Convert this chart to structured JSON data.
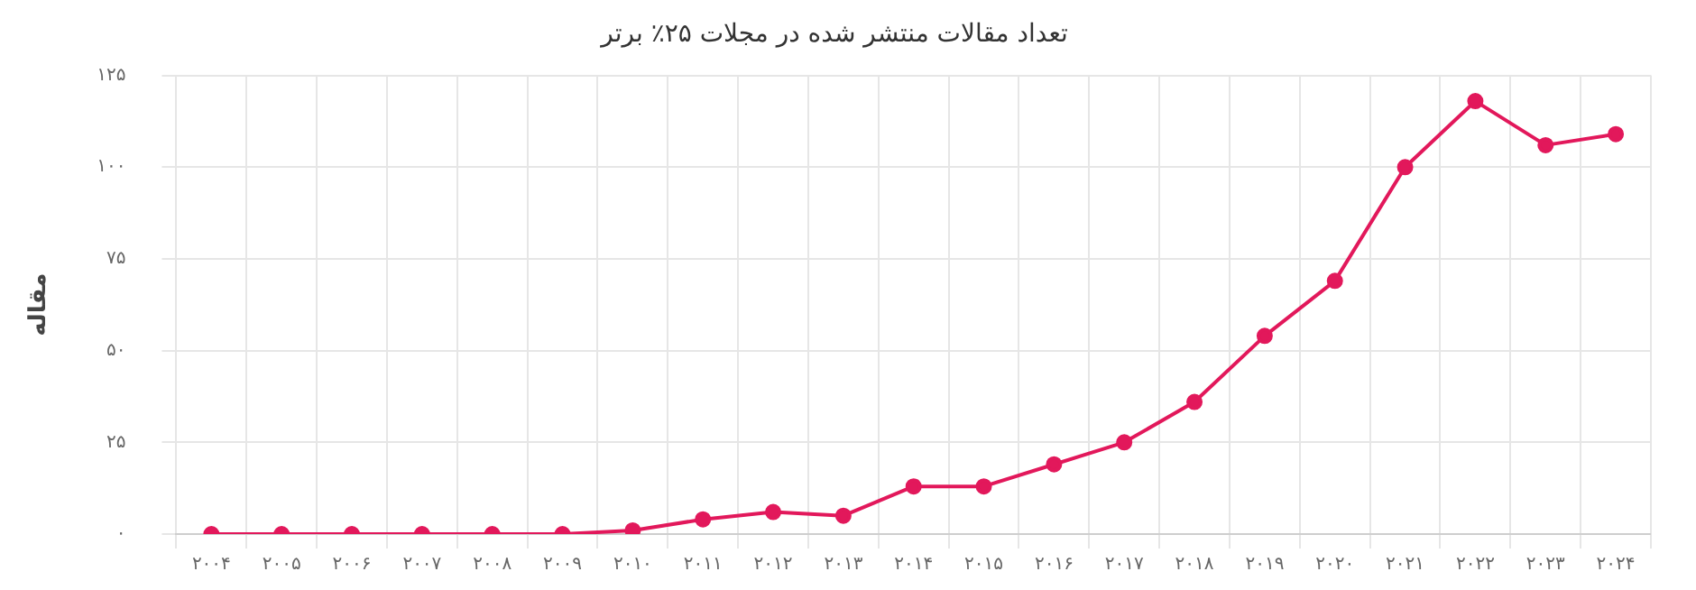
{
  "chart_data": {
    "type": "line",
    "title": "تعداد مقالات منتشر شده در مجلات ۲۵٪ برتر",
    "ylabel": "مقاله",
    "categories": [
      "۲۰۰۴",
      "۲۰۰۵",
      "۲۰۰۶",
      "۲۰۰۷",
      "۲۰۰۸",
      "۲۰۰۹",
      "۲۰۱۰",
      "۲۰۱۱",
      "۲۰۱۲",
      "۲۰۱۳",
      "۲۰۱۴",
      "۲۰۱۵",
      "۲۰۱۶",
      "۲۰۱۷",
      "۲۰۱۸",
      "۲۰۱۹",
      "۲۰۲۰",
      "۲۰۲۱",
      "۲۰۲۲",
      "۲۰۲۳",
      "۲۰۲۴"
    ],
    "series": [
      {
        "color": "#e2185b",
        "values": [
          0,
          0,
          0,
          0,
          0,
          0,
          1,
          4,
          6,
          5,
          13,
          13,
          19,
          25,
          36,
          54,
          69,
          100,
          118,
          106,
          109
        ]
      }
    ],
    "ylim": [
      0,
      125
    ],
    "yticks": [
      {
        "value": 0,
        "label": "۰"
      },
      {
        "value": 25,
        "label": "۲۵"
      },
      {
        "value": 50,
        "label": "۵۰"
      },
      {
        "value": 75,
        "label": "۷۵"
      },
      {
        "value": 100,
        "label": "۱۰۰"
      },
      {
        "value": 125,
        "label": "۱۲۵"
      }
    ],
    "grid": true,
    "marker": "circle",
    "line_style": "solid",
    "legend": false
  }
}
